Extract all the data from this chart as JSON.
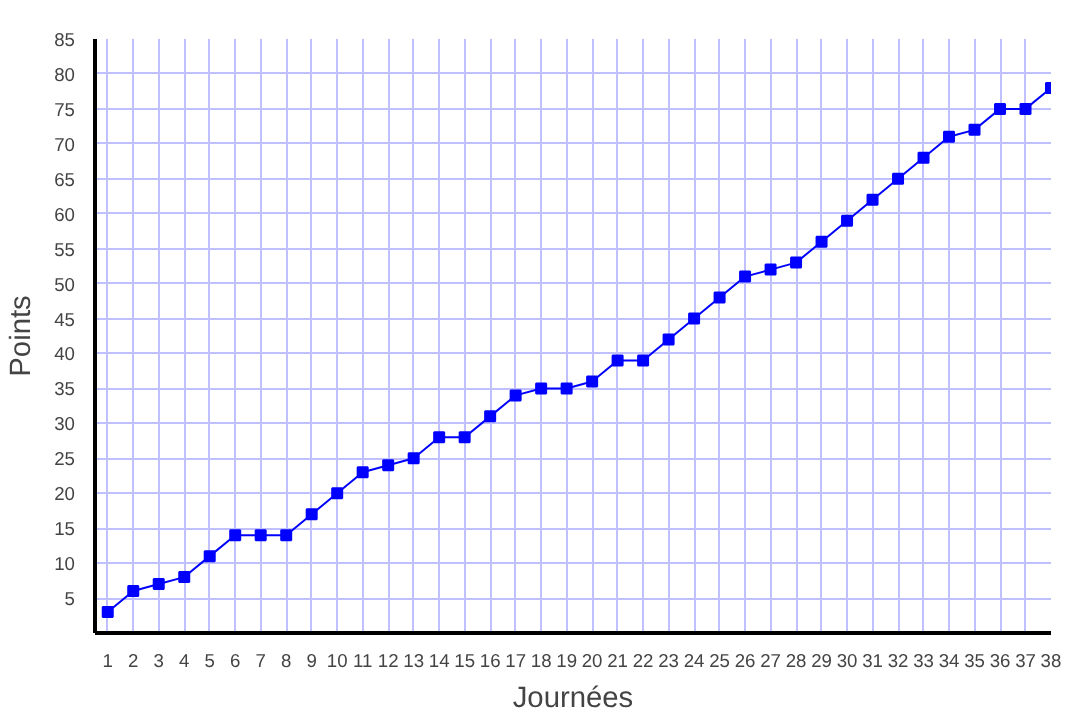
{
  "chart_data": {
    "type": "line",
    "xlabel": "Journées",
    "ylabel": "Points",
    "x": [
      1,
      2,
      3,
      4,
      5,
      6,
      7,
      8,
      9,
      10,
      11,
      12,
      13,
      14,
      15,
      16,
      17,
      18,
      19,
      20,
      21,
      22,
      23,
      24,
      25,
      26,
      27,
      28,
      29,
      30,
      31,
      32,
      33,
      34,
      35,
      36,
      37,
      38
    ],
    "series": [
      {
        "color": "#0000ff",
        "values": [
          3,
          6,
          7,
          8,
          11,
          14,
          14,
          14,
          17,
          20,
          23,
          24,
          25,
          28,
          28,
          31,
          34,
          35,
          35,
          36,
          39,
          39,
          42,
          45,
          48,
          51,
          52,
          53,
          56,
          59,
          62,
          65,
          68,
          71,
          72,
          75,
          75,
          78
        ]
      }
    ],
    "xlim": [
      0.5,
      38
    ],
    "xticks": [
      1,
      2,
      3,
      4,
      5,
      6,
      7,
      8,
      9,
      10,
      11,
      12,
      13,
      14,
      15,
      16,
      17,
      18,
      19,
      20,
      21,
      22,
      23,
      24,
      25,
      26,
      27,
      28,
      29,
      30,
      31,
      32,
      33,
      34,
      35,
      36,
      37,
      38
    ],
    "ylim": [
      0,
      85
    ],
    "yticks": [
      5,
      10,
      15,
      20,
      25,
      30,
      35,
      40,
      45,
      50,
      55,
      60,
      65,
      70,
      75,
      80,
      85
    ],
    "grid": true,
    "marker": "square",
    "line_style": "solid"
  }
}
